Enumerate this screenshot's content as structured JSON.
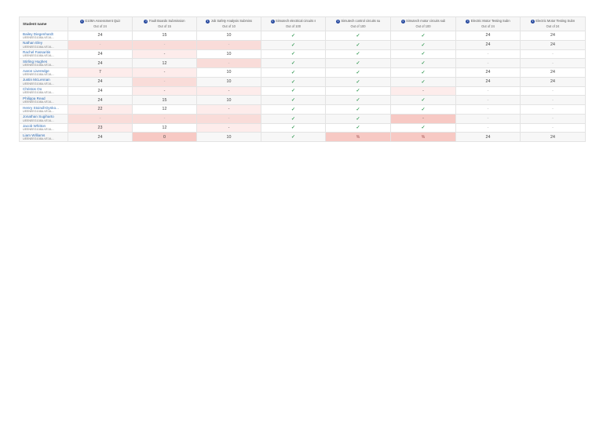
{
  "columns_header": {
    "student_names": "Student name"
  },
  "columns": [
    {
      "title": "G108A Assessment Quiz",
      "out_of": "Out of 24"
    },
    {
      "title": "Fault Boards Submission",
      "out_of": "Out of 15"
    },
    {
      "title": "Job Safety Analysis Submiss",
      "out_of": "Out of 10"
    },
    {
      "title": "Simutech electrical circuits s",
      "out_of": "Out of 100"
    },
    {
      "title": "Simutech control circuits su",
      "out_of": "Out of 100"
    },
    {
      "title": "Simutech motor circuits sub",
      "out_of": "Out of 100"
    },
    {
      "title": "Electric Motor Testing Subn",
      "out_of": "Out of 24"
    },
    {
      "title": "Electric Motor Testing Subn",
      "out_of": "Out of 24"
    }
  ],
  "students": [
    {
      "name": "Bailey Diegenhardt",
      "id": "UEENEEG108A-VE16-...",
      "cells": [
        {
          "v": "24",
          "s": ""
        },
        {
          "v": "15",
          "s": ""
        },
        {
          "v": "10",
          "s": ""
        },
        {
          "v": "✓",
          "s": "tick"
        },
        {
          "v": "✓",
          "s": "tick"
        },
        {
          "v": "✓",
          "s": "tick"
        },
        {
          "v": "24",
          "s": ""
        },
        {
          "v": "24",
          "s": ""
        }
      ]
    },
    {
      "name": "Nathan Eley",
      "id": "UEENEEG108A-VE16-...",
      "cells": [
        {
          "v": "-",
          "s": "miss"
        },
        {
          "v": "-",
          "s": "miss"
        },
        {
          "v": "-",
          "s": "miss"
        },
        {
          "v": "✓",
          "s": "tick"
        },
        {
          "v": "✓",
          "s": "tick"
        },
        {
          "v": "✓",
          "s": "tick"
        },
        {
          "v": "24",
          "s": ""
        },
        {
          "v": "24",
          "s": ""
        }
      ]
    },
    {
      "name": "Rachel Fassaritis",
      "id": "UEENEEG108A-VE16-...",
      "cells": [
        {
          "v": "24",
          "s": ""
        },
        {
          "v": "-",
          "s": "light"
        },
        {
          "v": "10",
          "s": ""
        },
        {
          "v": "✓",
          "s": "tick"
        },
        {
          "v": "✓",
          "s": "tick"
        },
        {
          "v": "✓",
          "s": "tick"
        },
        {
          "v": "-",
          "s": "dash"
        },
        {
          "v": "-",
          "s": "dash"
        }
      ]
    },
    {
      "name": "Stirling Hughes",
      "id": "UEENEEG108A-VE16-...",
      "cells": [
        {
          "v": "24",
          "s": ""
        },
        {
          "v": "12",
          "s": ""
        },
        {
          "v": "-",
          "s": "miss"
        },
        {
          "v": "✓",
          "s": "tick"
        },
        {
          "v": "✓",
          "s": "tick"
        },
        {
          "v": "✓",
          "s": "tick"
        },
        {
          "v": "-",
          "s": "dash"
        },
        {
          "v": "-",
          "s": "dash"
        }
      ]
    },
    {
      "name": "Aaron Liveredge",
      "id": "UEENEEG108A-VE16-...",
      "cells": [
        {
          "v": "7",
          "s": "light"
        },
        {
          "v": "-",
          "s": "light"
        },
        {
          "v": "10",
          "s": ""
        },
        {
          "v": "✓",
          "s": "tick"
        },
        {
          "v": "✓",
          "s": "tick"
        },
        {
          "v": "✓",
          "s": "tick"
        },
        {
          "v": "24",
          "s": ""
        },
        {
          "v": "24",
          "s": ""
        }
      ]
    },
    {
      "name": "Justin McLennan",
      "id": "UEENEEG108A-VE16-...",
      "cells": [
        {
          "v": "24",
          "s": ""
        },
        {
          "v": "-",
          "s": "miss"
        },
        {
          "v": "10",
          "s": ""
        },
        {
          "v": "✓",
          "s": "tick"
        },
        {
          "v": "✓",
          "s": "tick"
        },
        {
          "v": "✓",
          "s": "tick"
        },
        {
          "v": "24",
          "s": ""
        },
        {
          "v": "24",
          "s": ""
        }
      ]
    },
    {
      "name": "Christos Oo",
      "id": "UEENEEG108A-VE16-...",
      "cells": [
        {
          "v": "24",
          "s": ""
        },
        {
          "v": "-",
          "s": "light"
        },
        {
          "v": "-",
          "s": "light"
        },
        {
          "v": "✓",
          "s": "tick"
        },
        {
          "v": "✓",
          "s": "tick"
        },
        {
          "v": "-",
          "s": "light"
        },
        {
          "v": "-",
          "s": "dash"
        },
        {
          "v": "-",
          "s": "dash"
        }
      ]
    },
    {
      "name": "Philippa Read",
      "id": "UEENEEG108A-VE16-...",
      "cells": [
        {
          "v": "24",
          "s": ""
        },
        {
          "v": "15",
          "s": ""
        },
        {
          "v": "10",
          "s": ""
        },
        {
          "v": "✓",
          "s": "tick"
        },
        {
          "v": "✓",
          "s": "tick"
        },
        {
          "v": "✓",
          "s": "tick"
        },
        {
          "v": "-",
          "s": "dash"
        },
        {
          "v": "-",
          "s": "dash"
        }
      ]
    },
    {
      "name": "Henry Stoindl-Dynko...",
      "id": "UEENEEG108A-VE16-...",
      "cells": [
        {
          "v": "22",
          "s": "light"
        },
        {
          "v": "12",
          "s": ""
        },
        {
          "v": "-",
          "s": "light"
        },
        {
          "v": "✓",
          "s": "tick"
        },
        {
          "v": "✓",
          "s": "tick"
        },
        {
          "v": "✓",
          "s": "tick"
        },
        {
          "v": "-",
          "s": "dash"
        },
        {
          "v": "-",
          "s": "dash"
        }
      ]
    },
    {
      "name": "Jonathan Sugiharto",
      "id": "UEENEEG108A-VE16-...",
      "cells": [
        {
          "v": "-",
          "s": "miss"
        },
        {
          "v": "-",
          "s": "miss"
        },
        {
          "v": "-",
          "s": "miss"
        },
        {
          "v": "✓",
          "s": "tick"
        },
        {
          "v": "✓",
          "s": "tick"
        },
        {
          "v": "-",
          "s": "strong"
        },
        {
          "v": "-",
          "s": "dash"
        },
        {
          "v": "-",
          "s": "dash"
        }
      ]
    },
    {
      "name": "Jacob Whitton",
      "id": "UEENEEG108A-VE16-...",
      "cells": [
        {
          "v": "23",
          "s": "light"
        },
        {
          "v": "12",
          "s": ""
        },
        {
          "v": "-",
          "s": "light"
        },
        {
          "v": "✓",
          "s": "tick"
        },
        {
          "v": "✓",
          "s": "tick"
        },
        {
          "v": "✓",
          "s": "tick"
        },
        {
          "v": "-",
          "s": "dash"
        },
        {
          "v": "-",
          "s": "dash"
        }
      ]
    },
    {
      "name": "Liam Williams",
      "id": "UEENEEG108A-VE16-...",
      "cells": [
        {
          "v": "24",
          "s": ""
        },
        {
          "v": "0",
          "s": "strong"
        },
        {
          "v": "10",
          "s": ""
        },
        {
          "v": "✓",
          "s": "tick"
        },
        {
          "v": "%",
          "s": "strong"
        },
        {
          "v": "%",
          "s": "strong"
        },
        {
          "v": "24",
          "s": ""
        },
        {
          "v": "24",
          "s": ""
        }
      ]
    }
  ],
  "colors": {
    "link": "#2f6db5",
    "pass": "#3a9b58",
    "missing_bg": "#f9dcd9",
    "info_icon": "#2b4da0"
  }
}
